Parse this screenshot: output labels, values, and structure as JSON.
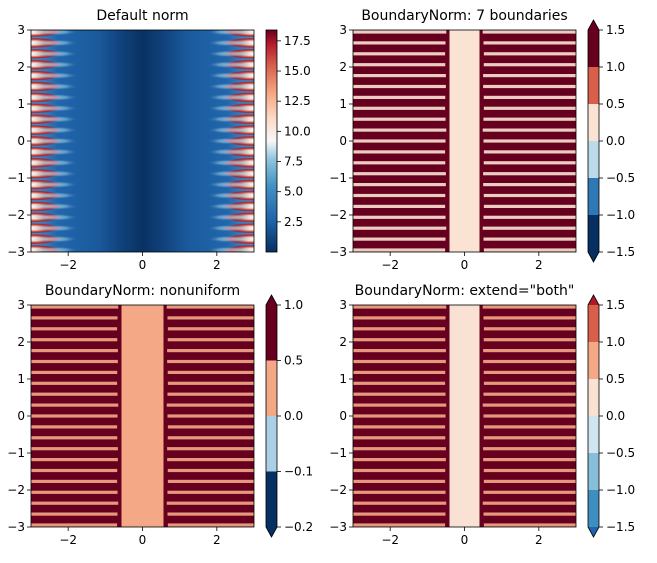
{
  "chart_data": [
    {
      "type": "heatmap",
      "title": "Default norm",
      "xlim": [
        -3,
        3
      ],
      "ylim": [
        -3,
        3
      ],
      "xticks": [
        "−2",
        "0",
        "2"
      ],
      "yticks": [
        "−3",
        "−2",
        "−1",
        "0",
        "1",
        "2",
        "3"
      ],
      "colorbar": {
        "kind": "continuous",
        "range": [
          0,
          18.4
        ],
        "ticks": [
          "2.5",
          "5.0",
          "7.5",
          "10.0",
          "12.5",
          "15.0",
          "17.5"
        ],
        "tick_values": [
          2.5,
          5.0,
          7.5,
          10.0,
          12.5,
          15.0,
          17.5
        ],
        "extend": "neither"
      },
      "colormap": "RdBu_r"
    },
    {
      "type": "heatmap",
      "title": "BoundaryNorm: 7 boundaries",
      "xlim": [
        -3,
        3
      ],
      "ylim": [
        -3,
        3
      ],
      "xticks": [
        "−2",
        "0",
        "2"
      ],
      "yticks": [
        "−3",
        "−2",
        "−1",
        "0",
        "1",
        "2",
        "3"
      ],
      "colorbar": {
        "kind": "discrete",
        "boundaries": [
          -1.5,
          -1.0,
          -0.5,
          0.0,
          0.5,
          1.0,
          1.5
        ],
        "ticks": [
          "−1.5",
          "−1.0",
          "−0.5",
          "0.0",
          "0.5",
          "1.0",
          "1.5"
        ],
        "extend": "both",
        "bins": [
          "#053061",
          "#2e79b5",
          "#bcdaea",
          "#fbe3d4",
          "#d85f4a",
          "#67001f"
        ],
        "under": "#053061",
        "over": "#67001f"
      },
      "colormap": "RdBu_r"
    },
    {
      "type": "heatmap",
      "title": "BoundaryNorm: nonuniform",
      "xlim": [
        -3,
        3
      ],
      "ylim": [
        -3,
        3
      ],
      "xticks": [
        "−2",
        "0",
        "2"
      ],
      "yticks": [
        "−3",
        "−2",
        "−1",
        "0",
        "1",
        "2",
        "3"
      ],
      "colorbar": {
        "kind": "discrete",
        "boundaries": [
          -0.2,
          -0.1,
          0.0,
          0.5,
          1.0
        ],
        "ticks": [
          "−0.2",
          "−0.1",
          "0.0",
          "0.5",
          "1.0"
        ],
        "extend": "both",
        "bins": [
          "#053061",
          "#a9d0e5",
          "#f4a886",
          "#67001f"
        ],
        "under": "#053061",
        "over": "#67001f"
      },
      "colormap": "RdBu_r"
    },
    {
      "type": "heatmap",
      "title": "BoundaryNorm: extend=\"both\"",
      "xlim": [
        -3,
        3
      ],
      "ylim": [
        -3,
        3
      ],
      "xticks": [
        "−2",
        "0",
        "2"
      ],
      "yticks": [
        "−3",
        "−2",
        "−1",
        "0",
        "1",
        "2",
        "3"
      ],
      "colorbar": {
        "kind": "discrete",
        "boundaries": [
          -1.5,
          -1.0,
          -0.5,
          0.0,
          0.5,
          1.0,
          1.5
        ],
        "ticks": [
          "−1.5",
          "−1.0",
          "−0.5",
          "0.0",
          "0.5",
          "1.0",
          "1.5"
        ],
        "extend": "both",
        "bins": [
          "#3f8ec0",
          "#87beda",
          "#d1e5f0",
          "#f9e1d3",
          "#f4a886",
          "#d85f4a"
        ],
        "under": "#2166ac",
        "over": "#b2182b"
      },
      "colormap": "RdBu_r"
    }
  ]
}
